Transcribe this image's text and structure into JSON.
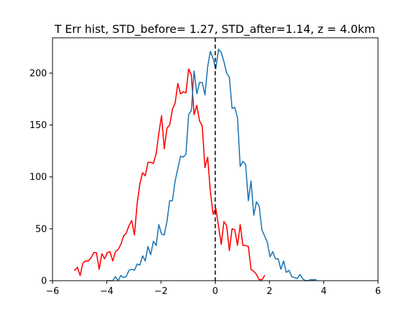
{
  "chart_data": {
    "type": "line",
    "title": "T Err hist, STD_before= 1.27, STD_after=1.14, z = 4.0km",
    "xlabel": "",
    "ylabel": "",
    "xlim": [
      -6,
      6
    ],
    "ylim": [
      0,
      234
    ],
    "xticks": [
      -6,
      -4,
      -2,
      0,
      2,
      4,
      6
    ],
    "xtick_labels": [
      "−6",
      "−4",
      "−2",
      "0",
      "2",
      "4",
      "6"
    ],
    "yticks": [
      0,
      50,
      100,
      150,
      200
    ],
    "ytick_labels": [
      "0",
      "50",
      "100",
      "150",
      "200"
    ],
    "grid": false,
    "reference_line": {
      "x": 0,
      "style": "dashed",
      "color": "#000000"
    },
    "series": [
      {
        "color": "#ff0000",
        "x": [
          -5.18,
          -5.08,
          -4.98,
          -4.88,
          -4.78,
          -4.68,
          -4.58,
          -4.48,
          -4.38,
          -4.28,
          -4.18,
          -4.08,
          -3.98,
          -3.88,
          -3.78,
          -3.68,
          -3.58,
          -3.48,
          -3.38,
          -3.28,
          -3.18,
          -3.08,
          -2.98,
          -2.88,
          -2.78,
          -2.68,
          -2.58,
          -2.48,
          -2.38,
          -2.28,
          -2.18,
          -2.08,
          -1.98,
          -1.88,
          -1.78,
          -1.68,
          -1.58,
          -1.48,
          -1.38,
          -1.28,
          -1.18,
          -1.08,
          -0.98,
          -0.88,
          -0.78,
          -0.68,
          -0.58,
          -0.48,
          -0.38,
          -0.28,
          -0.18,
          -0.08,
          0.02,
          0.12,
          0.22,
          0.32,
          0.42,
          0.52,
          0.62,
          0.72,
          0.82,
          0.92,
          1.02,
          1.12,
          1.22,
          1.32,
          1.42,
          1.52,
          1.62,
          1.72,
          1.82
        ],
        "y": [
          10,
          13,
          5,
          17,
          19,
          19,
          22,
          27,
          27,
          11,
          26,
          21,
          27,
          28,
          19,
          28,
          30,
          35,
          43,
          46,
          53,
          58,
          44,
          74,
          93,
          104,
          101,
          114,
          114,
          113,
          122,
          142,
          159,
          127,
          147,
          150,
          165,
          171,
          190,
          180,
          182,
          181,
          204,
          198,
          160,
          169,
          154,
          149,
          109,
          119,
          86,
          64,
          70,
          53,
          35,
          57,
          53,
          29,
          50,
          49,
          34,
          54,
          34,
          34,
          33,
          11,
          9,
          6,
          1,
          1,
          5
        ]
      },
      {
        "color": "#1f77b4",
        "x": [
          -3.98,
          -3.88,
          -3.78,
          -3.68,
          -3.58,
          -3.48,
          -3.38,
          -3.28,
          -3.18,
          -3.08,
          -2.98,
          -2.88,
          -2.78,
          -2.68,
          -2.58,
          -2.48,
          -2.38,
          -2.28,
          -2.18,
          -2.08,
          -1.98,
          -1.88,
          -1.78,
          -1.68,
          -1.58,
          -1.48,
          -1.38,
          -1.28,
          -1.18,
          -1.08,
          -0.98,
          -0.88,
          -0.78,
          -0.68,
          -0.58,
          -0.48,
          -0.38,
          -0.28,
          -0.18,
          -0.08,
          0.02,
          0.12,
          0.22,
          0.32,
          0.42,
          0.52,
          0.62,
          0.72,
          0.82,
          0.92,
          1.02,
          1.12,
          1.22,
          1.32,
          1.42,
          1.52,
          1.62,
          1.72,
          1.82,
          1.92,
          2.02,
          2.12,
          2.22,
          2.32,
          2.42,
          2.52,
          2.62,
          2.72,
          2.82,
          2.92,
          3.02,
          3.12,
          3.22,
          3.32,
          3.42,
          3.52,
          3.62,
          3.72
        ],
        "y": [
          0,
          0,
          0,
          4,
          0,
          5,
          3,
          4,
          10,
          11,
          10,
          16,
          15,
          24,
          19,
          33,
          25,
          38,
          34,
          54,
          45,
          44,
          57,
          77,
          77,
          96,
          108,
          120,
          119,
          122,
          160,
          164,
          202,
          180,
          191,
          191,
          179,
          206,
          221,
          214,
          204,
          223,
          220,
          211,
          200,
          196,
          166,
          167,
          157,
          110,
          115,
          112,
          77,
          96,
          63,
          76,
          72,
          49,
          43,
          37,
          23,
          28,
          21,
          21,
          11,
          19,
          8,
          10,
          4,
          3,
          2,
          6,
          2,
          0,
          0,
          1,
          1,
          1
        ]
      }
    ]
  }
}
